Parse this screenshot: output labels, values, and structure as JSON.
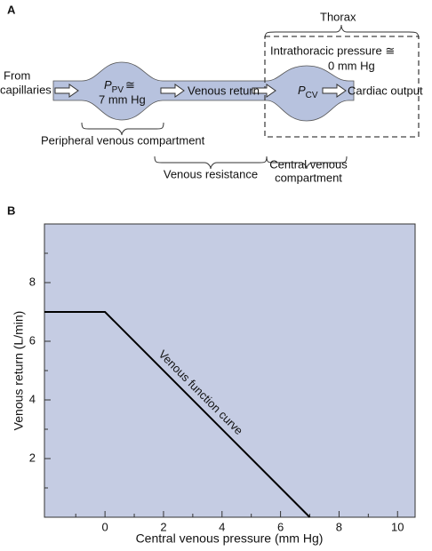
{
  "panel_a": {
    "label": "A",
    "source": [
      "From",
      "capillaries"
    ],
    "peripheral_pressure": {
      "symbol": "P",
      "subscript": "PV",
      "relation": "≅",
      "value": "7 mm Hg"
    },
    "venous_return": "Venous return",
    "central_pressure": {
      "symbol": "P",
      "subscript": "CV"
    },
    "cardiac_output": "Cardiac output",
    "thorax": "Thorax",
    "intrathoracic": [
      "Intrathoracic pressure ≅",
      "0 mm Hg"
    ],
    "peripheral_compartment": "Peripheral venous compartment",
    "venous_resistance": "Venous resistance",
    "central_compartment": [
      "Central venous",
      "compartment"
    ]
  },
  "chart_data": {
    "type": "line",
    "panel_label": "B",
    "xlabel": "Central venous pressure (mm Hg)",
    "ylabel": "Venous return (L/min)",
    "annotation": "Venous function curve",
    "x": [
      -2.07,
      0,
      7
    ],
    "series": [
      {
        "color": "#000000",
        "values": [
          7,
          7,
          0
        ]
      }
    ],
    "xlim": [
      -2.07,
      10.6
    ],
    "ylim": [
      0,
      10
    ],
    "xticks": [
      0,
      2,
      4,
      6,
      8,
      10
    ],
    "yticks": [
      2,
      4,
      6,
      8
    ],
    "xminorticks": [
      -1,
      1,
      3,
      5,
      7,
      9
    ],
    "yminorticks": [
      1,
      3,
      5,
      7,
      9
    ],
    "background": "#c5cce3"
  }
}
